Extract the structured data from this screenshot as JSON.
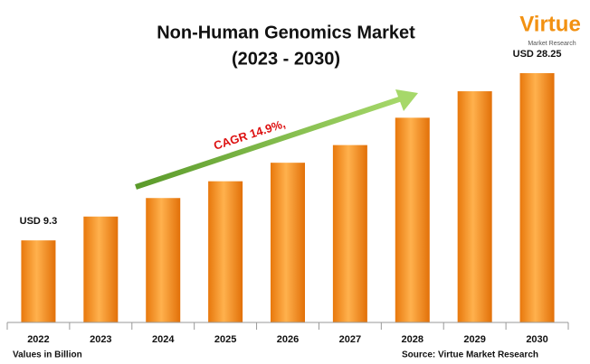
{
  "chart_data": {
    "type": "bar",
    "title": [
      "Non-Human Genomics Market",
      "(2023 - 2030)"
    ],
    "categories": [
      "2022",
      "2023",
      "2024",
      "2025",
      "2026",
      "2027",
      "2028",
      "2029",
      "2030"
    ],
    "values": [
      9.3,
      12.0,
      14.1,
      16.0,
      18.1,
      20.1,
      23.2,
      26.2,
      28.25
    ],
    "value_labels": [
      "USD 9.3",
      null,
      null,
      null,
      null,
      null,
      null,
      null,
      "USD 28.25"
    ],
    "color": "#f7931e",
    "annotations": {
      "cagr": "CAGR 14.9%,",
      "units": "Values in Billion",
      "source": "Source: Virtue Market Research"
    },
    "logo": {
      "name": "Virtue",
      "tagline": "Market Research"
    }
  }
}
